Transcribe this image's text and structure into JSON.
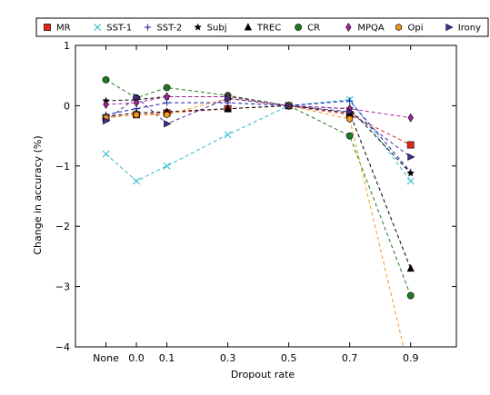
{
  "chart_data": {
    "type": "line",
    "xlabel": "Dropout rate",
    "ylabel": "Change in accuracy (%)",
    "x_categories": [
      "None",
      "0.0",
      "0.1",
      "0.3",
      "0.5",
      "0.7",
      "0.9"
    ],
    "x_positions": [
      -0.1,
      0.0,
      0.1,
      0.3,
      0.5,
      0.7,
      0.9
    ],
    "xlim": [
      -0.2,
      1.05
    ],
    "ylim": [
      -4,
      1
    ],
    "yticks": [
      1,
      0,
      -1,
      -2,
      -3,
      -4
    ],
    "legend_position": "top",
    "series": [
      {
        "name": "MR",
        "marker": "square",
        "color": "#e0261b",
        "values": [
          -0.2,
          -0.15,
          -0.12,
          -0.05,
          0,
          -0.15,
          -0.65
        ]
      },
      {
        "name": "SST-1",
        "marker": "x",
        "color": "#25bcc8",
        "values": [
          -0.8,
          -1.25,
          -1.0,
          -0.48,
          0,
          0.1,
          -1.25
        ]
      },
      {
        "name": "SST-2",
        "marker": "plus",
        "color": "#1a1aaa",
        "values": [
          -0.15,
          -0.05,
          0.05,
          0.05,
          0,
          0.08,
          -1.1
        ]
      },
      {
        "name": "Subj",
        "marker": "star",
        "color": "#000000",
        "values": [
          0.08,
          0.1,
          0.15,
          0.15,
          0,
          -0.05,
          -1.12
        ]
      },
      {
        "name": "TREC",
        "marker": "triangle",
        "color": "#000000",
        "values": [
          -0.18,
          -0.12,
          -0.1,
          -0.05,
          0,
          -0.12,
          -2.7
        ]
      },
      {
        "name": "CR",
        "marker": "circle",
        "color": "#1f7a1f",
        "values": [
          0.43,
          0.13,
          0.3,
          0.17,
          0,
          -0.5,
          -3.15
        ]
      },
      {
        "name": "MPQA",
        "marker": "diamond",
        "color": "#a8229e",
        "values": [
          0.02,
          0.05,
          0.15,
          0.15,
          0,
          -0.05,
          -0.2
        ]
      },
      {
        "name": "Opi",
        "marker": "hexagon",
        "color": "#f29a1c",
        "values": [
          -0.2,
          -0.15,
          -0.15,
          0.12,
          0,
          -0.22,
          -4.5
        ]
      },
      {
        "name": "Irony",
        "marker": "triangle-right",
        "color": "#4b2a9a",
        "values": [
          -0.25,
          0.14,
          -0.3,
          0.12,
          0,
          -0.1,
          -0.85
        ]
      }
    ]
  }
}
